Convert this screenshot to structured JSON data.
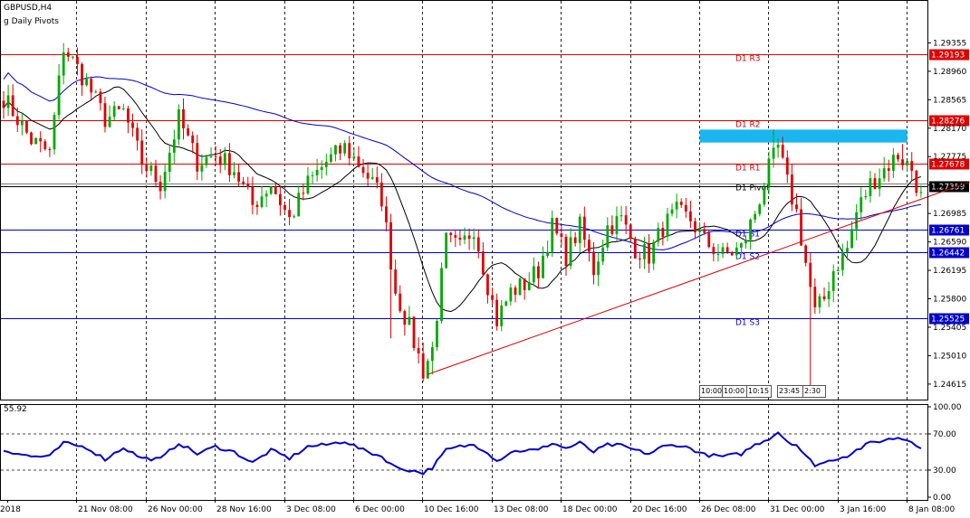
{
  "header": {
    "symbol": "GBPUSD,H4",
    "indicator": "g Daily Pivots"
  },
  "rsi_panel": {
    "value_label": "55.92"
  },
  "time_boxes": [
    "10:00",
    "10:00",
    "10:15",
    "23:45",
    "2:30"
  ],
  "colors": {
    "resistance": "#dd0000",
    "support": "#0000c8",
    "ma_long": "#0000c8",
    "ma_short": "#000000",
    "bull": "#00aa00",
    "bear": "#e00000",
    "trendline": "#dd0000",
    "zone": "#1ab6f0",
    "rsi": "#0000cc",
    "current_price_bg": "#000000"
  },
  "chart_data": [
    {
      "type": "candlestick",
      "ylim": [
        1.244,
        1.299
      ],
      "price_ticks": [
        "1.29355",
        "1.28960",
        "1.28565",
        "1.28170",
        "1.27775",
        "1.27380",
        "1.26985",
        "1.26590",
        "1.26195",
        "1.25800",
        "1.25405",
        "1.25010",
        "1.24615"
      ],
      "x_ticks": [
        "2018",
        "21 Nov 08:00",
        "26 Nov 00:00",
        "28 Nov 16:00",
        "3 Dec 08:00",
        "6 Dec 00:00",
        "10 Dec 16:00",
        "13 Dec 08:00",
        "18 Dec 00:00",
        "20 Dec 16:00",
        "26 Dec 08:00",
        "31 Dec 00:00",
        "3 Jan 16:00",
        "8 Jan 08:00"
      ],
      "pivot_levels": [
        {
          "label": "D1 R3",
          "value": 1.29193,
          "price_tag": "1.29193",
          "kind": "resistance"
        },
        {
          "label": "D1 R2",
          "value": 1.28276,
          "price_tag": "1.28276",
          "kind": "resistance"
        },
        {
          "label": "D1 R1",
          "value": 1.27678,
          "price_tag": "1.27678",
          "kind": "resistance"
        },
        {
          "label": "D1 Pivot",
          "value": 1.27359,
          "price_tag": "1.27359",
          "kind": "pivot"
        },
        {
          "label": "D1 S1",
          "value": 1.26761,
          "price_tag": "1.26761",
          "kind": "support"
        },
        {
          "label": "D1 S2",
          "value": 1.26442,
          "price_tag": "1.26442",
          "kind": "support"
        },
        {
          "label": "D1 S3",
          "value": 1.25525,
          "price_tag": "1.25525",
          "kind": "support"
        }
      ],
      "current_price": "1.27359",
      "zone": {
        "x_start_index": 151,
        "x_end_index": 196,
        "price_low": 1.2797,
        "price_high": 1.2815
      },
      "trendline": {
        "start": [
          92,
          1.2475
        ],
        "end": [
          227,
          1.2782
        ]
      },
      "anchors": [
        [
          0,
          1.286
        ],
        [
          6,
          1.28
        ],
        [
          10,
          1.2782
        ],
        [
          13,
          1.293
        ],
        [
          18,
          1.288
        ],
        [
          22,
          1.283
        ],
        [
          26,
          1.284
        ],
        [
          30,
          1.277
        ],
        [
          34,
          1.274
        ],
        [
          38,
          1.283
        ],
        [
          42,
          1.277
        ],
        [
          46,
          1.278
        ],
        [
          50,
          1.276
        ],
        [
          54,
          1.271
        ],
        [
          58,
          1.274
        ],
        [
          62,
          1.269
        ],
        [
          66,
          1.274
        ],
        [
          70,
          1.277
        ],
        [
          74,
          1.279
        ],
        [
          78,
          1.276
        ],
        [
          82,
          1.272
        ],
        [
          85,
          1.259
        ],
        [
          88,
          1.254
        ],
        [
          91,
          1.248
        ],
        [
          93,
          1.251
        ],
        [
          96,
          1.266
        ],
        [
          99,
          1.265
        ],
        [
          102,
          1.268
        ],
        [
          105,
          1.26
        ],
        [
          107,
          1.255
        ],
        [
          110,
          1.259
        ],
        [
          113,
          1.26
        ],
        [
          116,
          1.262
        ],
        [
          119,
          1.268
        ],
        [
          122,
          1.264
        ],
        [
          125,
          1.268
        ],
        [
          128,
          1.262
        ],
        [
          131,
          1.268
        ],
        [
          134,
          1.269
        ],
        [
          137,
          1.265
        ],
        [
          140,
          1.264
        ],
        [
          143,
          1.268
        ],
        [
          146,
          1.27
        ],
        [
          149,
          1.269
        ],
        [
          152,
          1.266
        ],
        [
          156,
          1.264
        ],
        [
          160,
          1.265
        ],
        [
          163,
          1.27
        ],
        [
          166,
          1.276
        ],
        [
          168,
          1.279
        ],
        [
          170,
          1.274
        ],
        [
          172,
          1.27
        ],
        [
          174,
          1.263
        ],
        [
          176,
          1.256
        ],
        [
          178,
          1.258
        ],
        [
          180,
          1.262
        ],
        [
          183,
          1.265
        ],
        [
          185,
          1.27
        ],
        [
          188,
          1.274
        ],
        [
          191,
          1.276
        ],
        [
          194,
          1.278
        ],
        [
          197,
          1.276
        ],
        [
          199,
          1.272
        ]
      ],
      "wick_extremes": [
        {
          "index": 13,
          "high": 1.2935
        },
        {
          "index": 84,
          "low": 1.2525
        },
        {
          "index": 93,
          "low": 1.2475
        },
        {
          "index": 108,
          "low": 1.2535
        },
        {
          "index": 167,
          "high": 1.2815
        },
        {
          "index": 175,
          "low": 1.2455
        },
        {
          "index": 195,
          "high": 1.2795
        }
      ],
      "n_candles": 200
    },
    {
      "type": "line",
      "name": "RSI",
      "ylim": [
        0,
        100
      ],
      "y_ticks": [
        "100.00",
        "70.00",
        "30.00",
        "0.00"
      ],
      "levels": [
        70,
        30
      ],
      "anchors": [
        [
          0,
          52
        ],
        [
          6,
          45
        ],
        [
          10,
          45
        ],
        [
          13,
          60
        ],
        [
          18,
          55
        ],
        [
          22,
          42
        ],
        [
          26,
          55
        ],
        [
          30,
          43
        ],
        [
          34,
          42
        ],
        [
          38,
          60
        ],
        [
          42,
          48
        ],
        [
          46,
          56
        ],
        [
          50,
          50
        ],
        [
          54,
          38
        ],
        [
          58,
          52
        ],
        [
          62,
          43
        ],
        [
          66,
          56
        ],
        [
          70,
          58
        ],
        [
          74,
          62
        ],
        [
          78,
          52
        ],
        [
          82,
          45
        ],
        [
          85,
          33
        ],
        [
          88,
          30
        ],
        [
          91,
          27
        ],
        [
          93,
          33
        ],
        [
          96,
          52
        ],
        [
          99,
          56
        ],
        [
          102,
          58
        ],
        [
          105,
          50
        ],
        [
          107,
          40
        ],
        [
          110,
          50
        ],
        [
          113,
          52
        ],
        [
          116,
          52
        ],
        [
          119,
          60
        ],
        [
          122,
          54
        ],
        [
          125,
          60
        ],
        [
          128,
          50
        ],
        [
          131,
          58
        ],
        [
          134,
          57
        ],
        [
          137,
          52
        ],
        [
          140,
          48
        ],
        [
          143,
          56
        ],
        [
          146,
          58
        ],
        [
          149,
          54
        ],
        [
          152,
          47
        ],
        [
          156,
          45
        ],
        [
          160,
          48
        ],
        [
          163,
          58
        ],
        [
          166,
          65
        ],
        [
          168,
          72
        ],
        [
          170,
          62
        ],
        [
          172,
          58
        ],
        [
          174,
          45
        ],
        [
          176,
          36
        ],
        [
          178,
          38
        ],
        [
          180,
          42
        ],
        [
          183,
          46
        ],
        [
          185,
          52
        ],
        [
          188,
          60
        ],
        [
          191,
          63
        ],
        [
          194,
          66
        ],
        [
          197,
          62
        ],
        [
          199,
          55
        ]
      ]
    }
  ]
}
